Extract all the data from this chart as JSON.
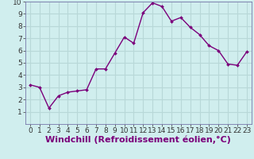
{
  "x": [
    0,
    1,
    2,
    3,
    4,
    5,
    6,
    7,
    8,
    9,
    10,
    11,
    12,
    13,
    14,
    15,
    16,
    17,
    18,
    19,
    20,
    21,
    22,
    23
  ],
  "y": [
    3.2,
    3.0,
    1.3,
    2.3,
    2.6,
    2.7,
    2.8,
    4.5,
    4.5,
    5.8,
    7.1,
    6.6,
    9.1,
    9.9,
    9.6,
    8.4,
    8.7,
    7.9,
    7.3,
    6.4,
    6.0,
    4.9,
    4.8,
    5.9
  ],
  "line_color": "#7b007b",
  "marker_color": "#7b007b",
  "bg_color": "#d0eeee",
  "grid_color": "#b8d8d8",
  "xlabel": "Windchill (Refroidissement éolien,°C)",
  "xlabel_color": "#7b007b",
  "ylim": [
    0,
    10
  ],
  "xlim_min": -0.5,
  "xlim_max": 23.5,
  "yticks": [
    1,
    2,
    3,
    4,
    5,
    6,
    7,
    8,
    9,
    10
  ],
  "xticks": [
    0,
    1,
    2,
    3,
    4,
    5,
    6,
    7,
    8,
    9,
    10,
    11,
    12,
    13,
    14,
    15,
    16,
    17,
    18,
    19,
    20,
    21,
    22,
    23
  ],
  "tick_label_fontsize": 6.5,
  "xlabel_fontsize": 8.0,
  "linewidth": 1.0,
  "markersize": 2.0
}
